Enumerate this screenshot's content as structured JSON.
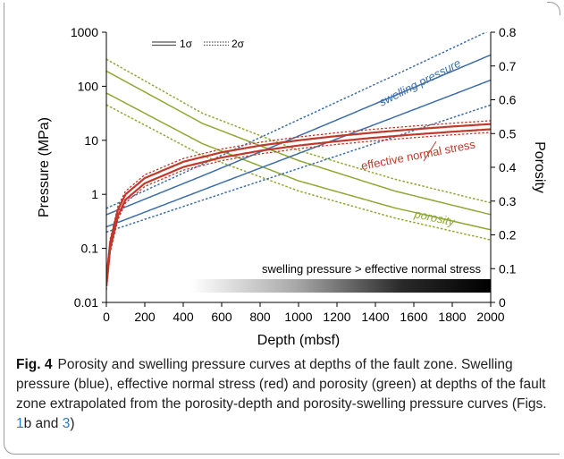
{
  "colors": {
    "swelling": "#3d6ea8",
    "stress": "#c0392b",
    "porosity": "#8ea832",
    "axis": "#000000",
    "frame": "#9a9a9a",
    "caption_ref": "#2b7bb9"
  },
  "chart_data": {
    "type": "line",
    "xlabel": "Depth (mbsf)",
    "ylabel_left": "Pressure (MPa)",
    "ylabel_right": "Porosity",
    "xlim": [
      0,
      2000
    ],
    "ylim_left": [
      0.01,
      1000
    ],
    "ylim_right": [
      0,
      0.8
    ],
    "left_scale": "log",
    "right_scale": "linear",
    "x_ticks": [
      "0",
      "200",
      "400",
      "600",
      "800",
      "1000",
      "1200",
      "1400",
      "1600",
      "1800",
      "2000"
    ],
    "y_ticks_left": [
      "0.01",
      "0.1",
      "1",
      "10",
      "100",
      "1000"
    ],
    "y_ticks_right": [
      "0",
      "0.1",
      "0.2",
      "0.3",
      "0.4",
      "0.5",
      "0.6",
      "0.7",
      "0.8"
    ],
    "grid": false,
    "legend": {
      "position": "top-left",
      "entries": [
        {
          "label": "1σ",
          "style": "solid-double"
        },
        {
          "label": "2σ",
          "style": "dotted-double"
        }
      ]
    },
    "annotations": {
      "swelling": "swelling pressure",
      "stress": "effective normal stress",
      "porosity": "porosity",
      "gradient_bar": "swelling pressure > effective normal stress"
    },
    "gradient_bar": {
      "x_start": 440,
      "x_end": 2000
    },
    "series": [
      {
        "group": "swelling",
        "band": "1σ",
        "axis": "left",
        "x": [
          0,
          500,
          1000,
          1500,
          2000
        ],
        "y": [
          0.42,
          2.2,
          12,
          67,
          380
        ]
      },
      {
        "group": "swelling",
        "band": "1σ",
        "axis": "left",
        "x": [
          0,
          500,
          1000,
          1500,
          2000
        ],
        "y": [
          0.25,
          1.2,
          5.7,
          27,
          130
        ]
      },
      {
        "group": "swelling",
        "band": "2σ",
        "axis": "left",
        "x": [
          0,
          500,
          1000,
          1500,
          2000
        ],
        "y": [
          0.55,
          3.6,
          24,
          160,
          1100
        ]
      },
      {
        "group": "swelling",
        "band": "2σ",
        "axis": "left",
        "x": [
          0,
          500,
          1000,
          1500,
          2000
        ],
        "y": [
          0.2,
          0.78,
          3.0,
          11.6,
          45
        ]
      },
      {
        "group": "stress",
        "band": "1σ",
        "axis": "left",
        "x": [
          0,
          20,
          60,
          100,
          200,
          400,
          600,
          800,
          1000,
          1200,
          1400,
          1600,
          1800,
          2000
        ],
        "y": [
          0.02,
          0.1,
          0.4,
          0.8,
          1.6,
          3.2,
          4.8,
          6.4,
          8.0,
          9.6,
          11.2,
          12.8,
          14.4,
          16
        ]
      },
      {
        "group": "stress",
        "band": "1σ",
        "axis": "left",
        "x": [
          0,
          20,
          60,
          100,
          200,
          400,
          600,
          800,
          1000,
          1200,
          1400,
          1600,
          1800,
          2000
        ],
        "y": [
          0.028,
          0.13,
          0.52,
          1.0,
          2.0,
          4.0,
          6.0,
          8.0,
          10.0,
          12.0,
          14.0,
          16.0,
          18.0,
          20.0
        ]
      },
      {
        "group": "stress",
        "band": "2σ",
        "axis": "left",
        "x": [
          0,
          20,
          60,
          100,
          200,
          400,
          600,
          800,
          1000,
          1200,
          1400,
          1600,
          1800,
          2000
        ],
        "y": [
          0.017,
          0.085,
          0.34,
          0.7,
          1.4,
          2.8,
          4.2,
          5.6,
          7.0,
          8.4,
          9.8,
          11.2,
          12.6,
          14.0
        ]
      },
      {
        "group": "stress",
        "band": "2σ",
        "axis": "left",
        "x": [
          0,
          20,
          60,
          100,
          200,
          400,
          600,
          800,
          1000,
          1200,
          1400,
          1600,
          1800,
          2000
        ],
        "y": [
          0.032,
          0.15,
          0.6,
          1.15,
          2.3,
          4.6,
          6.9,
          9.2,
          11.5,
          13.8,
          16.1,
          18.4,
          20.7,
          23.0
        ]
      },
      {
        "group": "porosity",
        "band": "1σ",
        "axis": "right",
        "x": [
          0,
          500,
          1000,
          1500,
          2000
        ],
        "y": [
          0.685,
          0.53,
          0.42,
          0.33,
          0.26
        ]
      },
      {
        "group": "porosity",
        "band": "1σ",
        "axis": "right",
        "x": [
          0,
          500,
          1000,
          1500,
          2000
        ],
        "y": [
          0.62,
          0.47,
          0.36,
          0.28,
          0.215
        ]
      },
      {
        "group": "porosity",
        "band": "2σ",
        "axis": "right",
        "x": [
          0,
          500,
          1000,
          1500,
          2000
        ],
        "y": [
          0.72,
          0.56,
          0.45,
          0.365,
          0.295
        ]
      },
      {
        "group": "porosity",
        "band": "2σ",
        "axis": "right",
        "x": [
          0,
          500,
          1000,
          1500,
          2000
        ],
        "y": [
          0.585,
          0.435,
          0.33,
          0.25,
          0.185
        ]
      }
    ]
  },
  "caption": {
    "label": "Fig. 4",
    "text_main": "Porosity and swelling pressure curves at depths of the fault zone. Swelling pressure (blue), effective normal stress (red) and porosity (green) at depths of the fault zone extrapolated from the porosity-depth and porosity-swelling pressure curves (Figs. ",
    "ref_1": "1",
    "text_mid": "b and ",
    "ref_2": "3",
    "text_end": ")"
  }
}
